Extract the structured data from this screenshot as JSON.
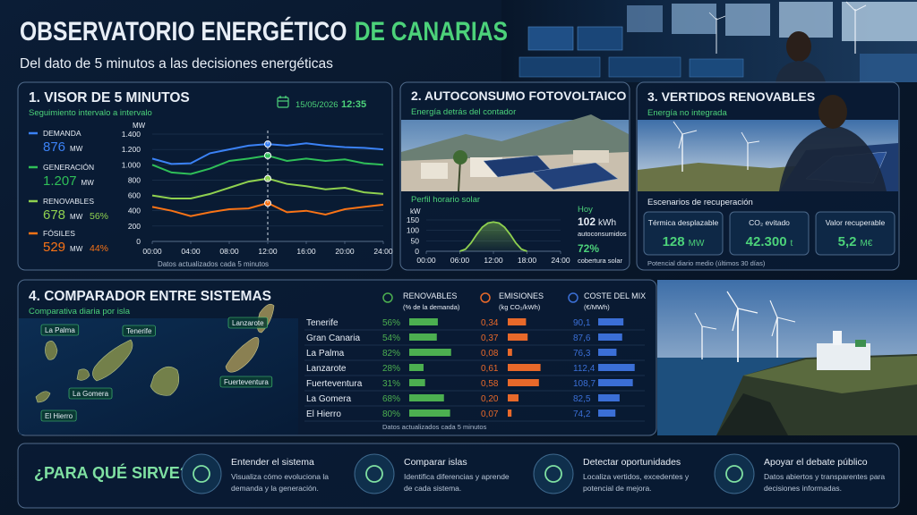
{
  "header": {
    "title": "OBSERVATORIO ENERGÉTICO",
    "title_highlight": "DE CANARIAS",
    "subtitle": "Del dato de 5 minutos a las decisiones energéticas"
  },
  "visor": {
    "title": "1. VISOR DE 5 MINUTOS",
    "subtitle": "Seguimiento intervalo a intervalo",
    "date": "15/05/2026",
    "time": "12:35",
    "note": "Datos actualizados cada 5 minutos"
  },
  "autoconsumo": {
    "title": "2. AUTOCONSUMO FOTOVOLTAICO",
    "subtitle": "Energía detrás del contador",
    "chart_title": "Perfil horario solar",
    "today": "Hoy",
    "energy": "102",
    "energy_unit": "kWh",
    "energy_label": "autoconsumidos",
    "coverage": "72%",
    "coverage_label": "cobertura solar"
  },
  "vertidos": {
    "title": "3. VERTIDOS RENOVABLES",
    "subtitle": "Energía no integrada",
    "scenarios_title": "Escenarios de recuperación",
    "cards": [
      {
        "label": "Térmica desplazable",
        "value": "128",
        "unit": "MW"
      },
      {
        "label": "CO₂ evitado",
        "value": "42.300",
        "unit": "t"
      },
      {
        "label": "Valor recuperable",
        "value": "5,2",
        "unit": "M€"
      }
    ],
    "note": "Potencial diario medio (últimos 30 días)"
  },
  "chart_data": [
    {
      "type": "line",
      "y_unit": "MW",
      "x": [
        0,
        2,
        4,
        6,
        8,
        10,
        12,
        14,
        16,
        18,
        20,
        22,
        24
      ],
      "xlim": [
        0,
        24
      ],
      "xticks": [
        {
          "value": 0,
          "label": "00:00"
        },
        {
          "value": 4,
          "label": "04:00"
        },
        {
          "value": 8,
          "label": "08:00"
        },
        {
          "value": 12,
          "label": "12:00"
        },
        {
          "value": 16,
          "label": "16:00"
        },
        {
          "value": 20,
          "label": "20:00"
        },
        {
          "value": 24,
          "label": "24:00"
        }
      ],
      "ylim": [
        0,
        1400
      ],
      "yticks": [
        0,
        200,
        400,
        600,
        800,
        {
          "value": 1000,
          "label": "1.000"
        },
        {
          "value": 1200,
          "label": "1.200"
        },
        {
          "value": 1400,
          "label": "1.400"
        }
      ],
      "grid": true,
      "highlight_x": 12,
      "series": [
        {
          "name": "DEMANDA",
          "color": "#3b82f6",
          "current": "876",
          "unit": "MW",
          "values": [
            1080,
            1010,
            1020,
            1150,
            1200,
            1250,
            1270,
            1250,
            1280,
            1250,
            1230,
            1220,
            1200
          ]
        },
        {
          "name": "GENERACIÓN",
          "color": "#2fbf58",
          "current": "1.207",
          "unit": "MW",
          "values": [
            1000,
            900,
            880,
            950,
            1050,
            1080,
            1120,
            1050,
            1080,
            1050,
            1070,
            1020,
            1000
          ]
        },
        {
          "name": "RENOVABLES",
          "color": "#8fd14f",
          "current": "678",
          "unit": "MW",
          "share": "56%",
          "values": [
            600,
            560,
            560,
            620,
            700,
            780,
            820,
            750,
            720,
            680,
            700,
            640,
            620
          ]
        },
        {
          "name": "FÓSILES",
          "color": "#f97316",
          "current": "529",
          "unit": "MW",
          "share": "44%",
          "values": [
            450,
            400,
            330,
            380,
            420,
            430,
            500,
            380,
            400,
            350,
            420,
            450,
            480
          ]
        }
      ]
    },
    {
      "type": "area",
      "y_unit": "kW",
      "x": [
        6,
        7,
        8,
        9,
        10,
        11,
        12,
        13,
        14,
        15,
        16,
        17,
        18
      ],
      "xlim": [
        0,
        24
      ],
      "xticks": [
        {
          "value": 0,
          "label": "00:00"
        },
        {
          "value": 6,
          "label": "06:00"
        },
        {
          "value": 12,
          "label": "12:00"
        },
        {
          "value": 18,
          "label": "18:00"
        },
        {
          "value": 24,
          "label": "24:00"
        }
      ],
      "ylim": [
        0,
        150
      ],
      "yticks": [
        0,
        50,
        100,
        150
      ],
      "grid": true,
      "series": [
        {
          "color": "#8fd14f",
          "values": [
            0,
            10,
            40,
            80,
            115,
            135,
            140,
            135,
            115,
            80,
            40,
            10,
            0
          ]
        }
      ]
    }
  ],
  "comparador": {
    "title": "4. COMPARADOR ENTRE SISTEMAS",
    "subtitle": "Comparativa diaria por isla",
    "map_labels": [
      "La Palma",
      "Tenerife",
      "Lanzarote",
      "La Gomera",
      "Fuerteventura",
      "El Hierro"
    ],
    "islands": [
      "Tenerife",
      "Gran Canaria",
      "La Palma",
      "Lanzarote",
      "Fuerteventura",
      "La Gomera",
      "El Hierro"
    ],
    "columns": [
      {
        "title": "RENOVABLES",
        "unit": "(% de la demanda)",
        "color": "#4caf50",
        "scale": [
          0,
          100
        ],
        "values": [
          56,
          54,
          82,
          28,
          31,
          68,
          80
        ],
        "value_labels": [
          "56%",
          "54%",
          "82%",
          "28%",
          "31%",
          "68%",
          "80%"
        ]
      },
      {
        "title": "EMISIONES",
        "unit": "(kg CO₂/kWh)",
        "color": "#e8692a",
        "scale": [
          0,
          0.7
        ],
        "values": [
          0.34,
          0.37,
          0.08,
          0.61,
          0.58,
          0.2,
          0.07
        ],
        "value_labels": [
          "0,34",
          "0,37",
          "0,08",
          "0,61",
          "0,58",
          "0,20",
          "0,07"
        ]
      },
      {
        "title": "COSTE DEL MIX",
        "unit": "(€/MWh)",
        "color": "#3b6fd6",
        "scale": [
          40,
          120
        ],
        "values": [
          90.1,
          87.6,
          76.3,
          112.4,
          108.7,
          82.5,
          74.2
        ],
        "value_labels": [
          "90,1",
          "87,6",
          "76,3",
          "112,4",
          "108,7",
          "82,5",
          "74,2"
        ]
      }
    ],
    "note": "Datos actualizados cada 5 minutos"
  },
  "purpose": {
    "title": "¿PARA QUÉ SIRVE?",
    "items": [
      {
        "title": "Entender el sistema",
        "text": [
          "Visualiza cómo evoluciona la",
          "demanda y la generación."
        ]
      },
      {
        "title": "Comparar islas",
        "text": [
          "Identifica diferencias y aprende",
          "de cada sistema."
        ]
      },
      {
        "title": "Detectar oportunidades",
        "text": [
          "Localiza vertidos, excedentes y",
          "potencial de mejora."
        ]
      },
      {
        "title": "Apoyar el debate público",
        "text": [
          "Datos abiertos y transparentes para",
          "decisiones informadas."
        ]
      }
    ]
  }
}
